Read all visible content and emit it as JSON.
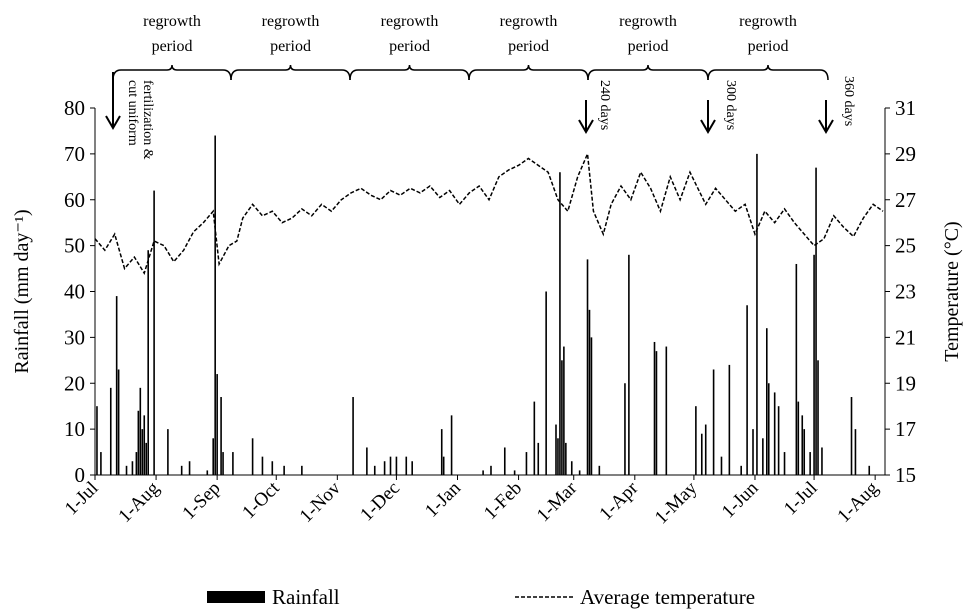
{
  "chart_data": {
    "type": "bar-line",
    "ylabel": "Rainfall (mm day⁻¹)",
    "y2label": "Temperature (°C)",
    "xlim": [
      0,
      401
    ],
    "xticks": [
      {
        "value": 0,
        "label": "1-Jul"
      },
      {
        "value": 31,
        "label": "1-Aug"
      },
      {
        "value": 62,
        "label": "1-Sep"
      },
      {
        "value": 92,
        "label": "1-Oct"
      },
      {
        "value": 123,
        "label": "1-Nov"
      },
      {
        "value": 153,
        "label": "1-Dec"
      },
      {
        "value": 184,
        "label": "1-Jan"
      },
      {
        "value": 215,
        "label": "1-Feb"
      },
      {
        "value": 243,
        "label": "1-Mar"
      },
      {
        "value": 274,
        "label": "1-Apr"
      },
      {
        "value": 304,
        "label": "1-May"
      },
      {
        "value": 335,
        "label": "1-Jun"
      },
      {
        "value": 365,
        "label": "1-Jul"
      },
      {
        "value": 396,
        "label": "1-Aug"
      }
    ],
    "ylim": [
      0,
      80
    ],
    "yticks": [
      0,
      10,
      20,
      30,
      40,
      50,
      60,
      70,
      80
    ],
    "y2lim": [
      15,
      31
    ],
    "y2ticks": [
      15,
      17,
      19,
      21,
      23,
      25,
      27,
      29,
      31
    ],
    "annotations": [
      "regrowth period",
      "regrowth period",
      "regrowth period",
      "regrowth period",
      "regrowth period",
      "regrowth period"
    ],
    "arrow_labels": [
      "fertilization & cut uniform",
      "240 days",
      "300 days",
      "360 days"
    ],
    "series": [
      {
        "name": "Rainfall",
        "type": "bar",
        "color": "#000000",
        "x": [
          1,
          3,
          8,
          11,
          12,
          16,
          19,
          21,
          22,
          23,
          24,
          25,
          26,
          27,
          30,
          37,
          44,
          48,
          57,
          60,
          61,
          62,
          64,
          65,
          70,
          80,
          85,
          90,
          96,
          105,
          131,
          138,
          142,
          147,
          150,
          153,
          158,
          161,
          176,
          177,
          181,
          197,
          201,
          208,
          213,
          219,
          223,
          225,
          229,
          234,
          235,
          236,
          237,
          238,
          239,
          242,
          246,
          250,
          251,
          252,
          256,
          269,
          271,
          284,
          285,
          290,
          305,
          308,
          310,
          314,
          318,
          322,
          328,
          331,
          334,
          336,
          339,
          341,
          342,
          345,
          347,
          350,
          356,
          357,
          359,
          360,
          363,
          365,
          366,
          367,
          369,
          384,
          386,
          393
        ],
        "values": [
          15,
          5,
          19,
          39,
          23,
          2,
          3,
          5,
          14,
          19,
          10,
          13,
          7,
          49,
          62,
          10,
          2,
          3,
          1,
          8,
          74,
          22,
          17,
          5,
          5,
          8,
          4,
          3,
          2,
          2,
          17,
          6,
          2,
          3,
          4,
          4,
          4,
          3,
          10,
          4,
          13,
          1,
          2,
          6,
          1,
          5,
          16,
          7,
          40,
          11,
          8,
          66,
          25,
          28,
          7,
          3,
          1,
          47,
          36,
          30,
          2,
          20,
          48,
          29,
          27,
          28,
          15,
          9,
          11,
          23,
          4,
          24,
          2,
          37,
          10,
          70,
          8,
          32,
          20,
          18,
          15,
          5,
          46,
          16,
          13,
          10,
          5,
          48,
          67,
          25,
          6,
          17,
          10,
          2
        ]
      },
      {
        "name": "Average temperature",
        "type": "line",
        "axis": "y2",
        "color": "#000000",
        "x": [
          0,
          5,
          10,
          15,
          20,
          25,
          30,
          35,
          40,
          45,
          50,
          55,
          60,
          63,
          68,
          72,
          75,
          80,
          85,
          90,
          95,
          100,
          105,
          110,
          115,
          120,
          125,
          130,
          135,
          140,
          145,
          150,
          155,
          160,
          165,
          170,
          175,
          180,
          185,
          190,
          195,
          200,
          205,
          210,
          215,
          220,
          225,
          230,
          235,
          240,
          245,
          250,
          253,
          258,
          262,
          267,
          272,
          277,
          282,
          287,
          292,
          297,
          302,
          306,
          310,
          315,
          320,
          325,
          330,
          335,
          340,
          345,
          350,
          355,
          360,
          365,
          370,
          375,
          380,
          385,
          390,
          395,
          400
        ],
        "values": [
          25.3,
          24.8,
          25.5,
          24.0,
          24.5,
          23.8,
          25.2,
          25.0,
          24.3,
          24.8,
          25.6,
          26.0,
          26.5,
          24.2,
          25.0,
          25.2,
          26.2,
          26.8,
          26.3,
          26.5,
          26.0,
          26.2,
          26.6,
          26.3,
          26.8,
          26.5,
          27.0,
          27.3,
          27.5,
          27.2,
          27.0,
          27.4,
          27.2,
          27.5,
          27.3,
          27.6,
          27.1,
          27.4,
          26.8,
          27.3,
          27.6,
          27.0,
          28.0,
          28.3,
          28.5,
          28.8,
          28.5,
          28.2,
          27.0,
          26.5,
          28.0,
          29.0,
          26.5,
          25.5,
          26.8,
          27.6,
          27.0,
          28.2,
          27.5,
          26.5,
          28.0,
          27.0,
          28.2,
          27.5,
          26.8,
          27.5,
          27.0,
          26.5,
          26.8,
          25.5,
          26.5,
          26.0,
          26.6,
          26.0,
          25.5,
          25.0,
          25.3,
          26.3,
          25.8,
          25.4,
          26.2,
          26.8,
          26.5
        ]
      }
    ]
  }
}
